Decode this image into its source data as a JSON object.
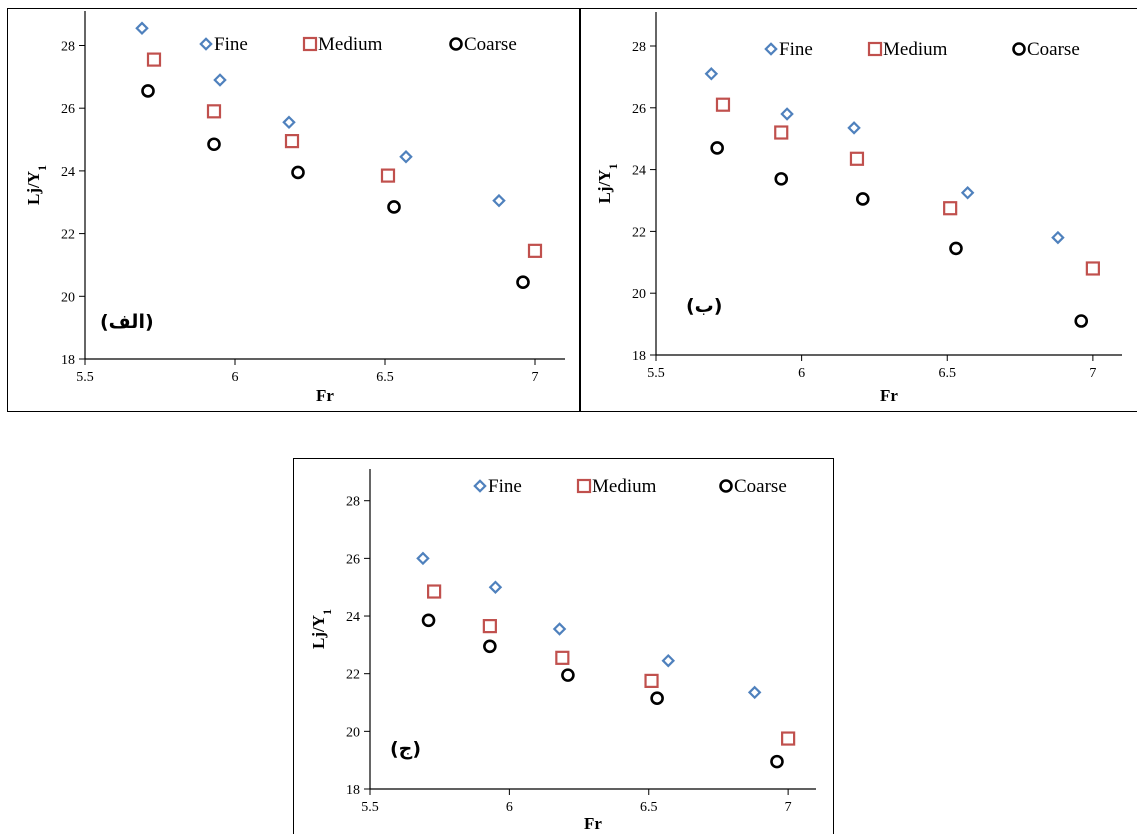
{
  "chart_data": [
    {
      "type": "scatter",
      "panel_label": "(الف)",
      "xlabel": "Fr",
      "ylabel": "Lj/Y1",
      "xlim": [
        5.5,
        7.1
      ],
      "ylim": [
        18,
        29
      ],
      "xticks": [
        5.5,
        6,
        6.5,
        7
      ],
      "yticks": [
        18,
        20,
        22,
        24,
        26,
        28
      ],
      "legend": "top",
      "series": [
        {
          "name": "Fine",
          "color": "#4f81bd",
          "marker": "diamond",
          "x": [
            5.69,
            5.95,
            6.18,
            6.57,
            6.88
          ],
          "y": [
            28.55,
            26.9,
            25.55,
            24.45,
            23.05
          ]
        },
        {
          "name": "Medium",
          "color": "#c0504d",
          "marker": "square",
          "x": [
            5.73,
            5.93,
            6.19,
            6.51,
            7.0
          ],
          "y": [
            27.55,
            25.9,
            24.95,
            23.85,
            21.45
          ]
        },
        {
          "name": "Coarse",
          "color": "#000000",
          "marker": "circle",
          "x": [
            5.71,
            5.93,
            6.21,
            6.53,
            6.96
          ],
          "y": [
            26.55,
            24.85,
            23.95,
            22.85,
            20.45
          ]
        }
      ]
    },
    {
      "type": "scatter",
      "panel_label": "(ب)",
      "xlabel": "Fr",
      "ylabel": "Lj/Y1",
      "xlim": [
        5.5,
        7.1
      ],
      "ylim": [
        18,
        29
      ],
      "xticks": [
        5.5,
        6,
        6.5,
        7
      ],
      "yticks": [
        18,
        20,
        22,
        24,
        26,
        28
      ],
      "legend": "top",
      "series": [
        {
          "name": "Fine",
          "color": "#4f81bd",
          "marker": "diamond",
          "x": [
            5.69,
            5.95,
            6.18,
            6.57,
            6.88
          ],
          "y": [
            27.1,
            25.8,
            25.35,
            23.25,
            21.8
          ]
        },
        {
          "name": "Medium",
          "color": "#c0504d",
          "marker": "square",
          "x": [
            5.73,
            5.93,
            6.19,
            6.51,
            7.0
          ],
          "y": [
            26.1,
            25.2,
            24.35,
            22.75,
            20.8
          ]
        },
        {
          "name": "Coarse",
          "color": "#000000",
          "marker": "circle",
          "x": [
            5.71,
            5.93,
            6.21,
            6.53,
            6.96
          ],
          "y": [
            24.7,
            23.7,
            23.05,
            21.45,
            19.1
          ]
        }
      ]
    },
    {
      "type": "scatter",
      "panel_label": "(ج)",
      "xlabel": "Fr",
      "ylabel": "Lj/Y1",
      "xlim": [
        5.5,
        7.1
      ],
      "ylim": [
        18,
        29
      ],
      "xticks": [
        5.5,
        6,
        6.5,
        7
      ],
      "yticks": [
        18,
        20,
        22,
        24,
        26,
        28
      ],
      "legend": "top",
      "series": [
        {
          "name": "Fine",
          "color": "#4f81bd",
          "marker": "diamond",
          "x": [
            5.69,
            5.95,
            6.18,
            6.57,
            6.88
          ],
          "y": [
            26.0,
            25.0,
            23.55,
            22.45,
            21.35
          ]
        },
        {
          "name": "Medium",
          "color": "#c0504d",
          "marker": "square",
          "x": [
            5.73,
            5.93,
            6.19,
            6.51,
            7.0
          ],
          "y": [
            24.85,
            23.65,
            22.55,
            21.75,
            19.75
          ]
        },
        {
          "name": "Coarse",
          "color": "#000000",
          "marker": "circle",
          "x": [
            5.71,
            5.93,
            6.21,
            6.53,
            6.96
          ],
          "y": [
            23.85,
            22.95,
            21.95,
            21.15,
            18.95
          ]
        }
      ]
    }
  ]
}
